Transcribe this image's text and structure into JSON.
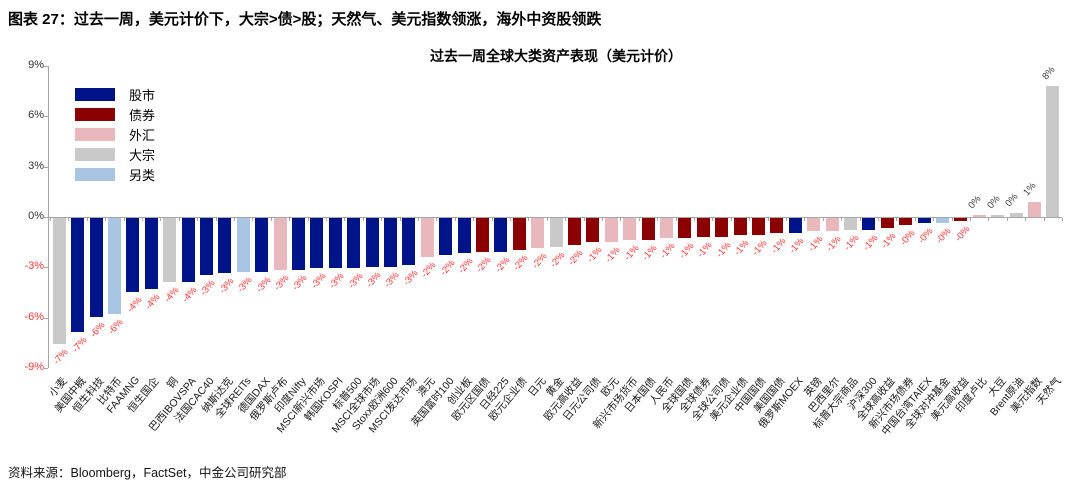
{
  "figure_title": "图表 27：过去一周，美元计价下，大宗>债>股；天然气、美元指数领涨，海外中资股领跌",
  "source_note": "资料来源：Bloomberg，FactSet，中金公司研究部",
  "chart_data": {
    "type": "bar",
    "title": "过去一周全球大类资产表现（美元计价）",
    "ylabel": "",
    "xlabel": "",
    "ylim": [
      -9,
      9
    ],
    "grid": false,
    "legend_position": "top-left",
    "y_ticks": [
      {
        "label": "9%",
        "value": 9
      },
      {
        "label": "6%",
        "value": 6
      },
      {
        "label": "3%",
        "value": 3
      },
      {
        "label": "0%",
        "value": 0
      },
      {
        "label": "-3%",
        "value": -3
      },
      {
        "label": "-6%",
        "value": -6
      },
      {
        "label": "-9%",
        "value": -9
      }
    ],
    "legend": [
      {
        "label": "股市",
        "color": "#001489"
      },
      {
        "label": "债券",
        "color": "#8B0000"
      },
      {
        "label": "外汇",
        "color": "#E9B8BD"
      },
      {
        "label": "大宗",
        "color": "#C9C9C9"
      },
      {
        "label": "另类",
        "color": "#A9C5E4"
      }
    ],
    "category_colors": {
      "股市": "#001489",
      "债券": "#8B0000",
      "外汇": "#E9B8BD",
      "大宗": "#C9C9C9",
      "另类": "#A9C5E4"
    },
    "label_colors": {
      "negative": "#FF3535",
      "positive": "#3f3f3f"
    },
    "bars": [
      {
        "label": "小麦",
        "category": "大宗",
        "value": -7.5,
        "value_label": "-7%"
      },
      {
        "label": "美国中概",
        "category": "股市",
        "value": -6.8,
        "value_label": "-7%"
      },
      {
        "label": "恒生科技",
        "category": "股市",
        "value": -5.9,
        "value_label": "-6%"
      },
      {
        "label": "比特币",
        "category": "另类",
        "value": -5.7,
        "value_label": "-6%"
      },
      {
        "label": "FAAMNG",
        "category": "股市",
        "value": -4.4,
        "value_label": "-4%"
      },
      {
        "label": "恒生国企",
        "category": "股市",
        "value": -4.2,
        "value_label": "-4%"
      },
      {
        "label": "铜",
        "category": "大宗",
        "value": -3.8,
        "value_label": "-4%"
      },
      {
        "label": "巴西IBOVSPA",
        "category": "股市",
        "value": -3.8,
        "value_label": "-4%"
      },
      {
        "label": "法国CAC40",
        "category": "股市",
        "value": -3.4,
        "value_label": "-3%"
      },
      {
        "label": "纳斯达克",
        "category": "股市",
        "value": -3.3,
        "value_label": "-3%"
      },
      {
        "label": "全球REITs",
        "category": "另类",
        "value": -3.2,
        "value_label": "-3%"
      },
      {
        "label": "德国DAX",
        "category": "股市",
        "value": -3.2,
        "value_label": "-3%"
      },
      {
        "label": "俄罗斯卢布",
        "category": "外汇",
        "value": -3.1,
        "value_label": "-3%"
      },
      {
        "label": "印度Nifty",
        "category": "股市",
        "value": -3.1,
        "value_label": "-3%"
      },
      {
        "label": "MSCI新兴市场",
        "category": "股市",
        "value": -3.0,
        "value_label": "-3%"
      },
      {
        "label": "韩国KOSPI",
        "category": "股市",
        "value": -3.0,
        "value_label": "-3%"
      },
      {
        "label": "标普500",
        "category": "股市",
        "value": -3.0,
        "value_label": "-3%"
      },
      {
        "label": "MSCI全球市场",
        "category": "股市",
        "value": -2.9,
        "value_label": "-3%"
      },
      {
        "label": "Stoxx欧洲600",
        "category": "股市",
        "value": -2.9,
        "value_label": "-3%"
      },
      {
        "label": "MSCI发达市场",
        "category": "股市",
        "value": -2.8,
        "value_label": "-3%"
      },
      {
        "label": "澳元",
        "category": "外汇",
        "value": -2.3,
        "value_label": "-2%"
      },
      {
        "label": "英国富时100",
        "category": "股市",
        "value": -2.2,
        "value_label": "-2%"
      },
      {
        "label": "创业板",
        "category": "股市",
        "value": -2.1,
        "value_label": "-2%"
      },
      {
        "label": "欧元区国债",
        "category": "债券",
        "value": -2.0,
        "value_label": "-2%"
      },
      {
        "label": "日经225",
        "category": "股市",
        "value": -2.0,
        "value_label": "-2%"
      },
      {
        "label": "欧元企业债",
        "category": "债券",
        "value": -1.9,
        "value_label": "-2%"
      },
      {
        "label": "日元",
        "category": "外汇",
        "value": -1.8,
        "value_label": "-2%"
      },
      {
        "label": "黄金",
        "category": "大宗",
        "value": -1.7,
        "value_label": "-2%"
      },
      {
        "label": "欧元高收益",
        "category": "债券",
        "value": -1.6,
        "value_label": "-2%"
      },
      {
        "label": "日元公司债",
        "category": "债券",
        "value": -1.4,
        "value_label": "-1%"
      },
      {
        "label": "欧元",
        "category": "外汇",
        "value": -1.4,
        "value_label": "-1%"
      },
      {
        "label": "新兴市场货币",
        "category": "外汇",
        "value": -1.3,
        "value_label": "-1%"
      },
      {
        "label": "日本国债",
        "category": "债券",
        "value": -1.3,
        "value_label": "-1%"
      },
      {
        "label": "人民币",
        "category": "外汇",
        "value": -1.2,
        "value_label": "-1%"
      },
      {
        "label": "全球国债",
        "category": "债券",
        "value": -1.2,
        "value_label": "-1%"
      },
      {
        "label": "全球债券",
        "category": "债券",
        "value": -1.1,
        "value_label": "-1%"
      },
      {
        "label": "全球公司债",
        "category": "债券",
        "value": -1.1,
        "value_label": "-1%"
      },
      {
        "label": "美元企业债",
        "category": "债券",
        "value": -1.0,
        "value_label": "-1%"
      },
      {
        "label": "中国国债",
        "category": "债券",
        "value": -1.0,
        "value_label": "-1%"
      },
      {
        "label": "美国国债",
        "category": "债券",
        "value": -0.9,
        "value_label": "-1%"
      },
      {
        "label": "俄罗斯MOEX",
        "category": "股市",
        "value": -0.9,
        "value_label": "-1%"
      },
      {
        "label": "英镑",
        "category": "外汇",
        "value": -0.8,
        "value_label": "-1%"
      },
      {
        "label": "巴西里尔",
        "category": "外汇",
        "value": -0.8,
        "value_label": "-1%"
      },
      {
        "label": "标普大宗商品",
        "category": "大宗",
        "value": -0.7,
        "value_label": "-1%"
      },
      {
        "label": "沪深300",
        "category": "股市",
        "value": -0.7,
        "value_label": "-1%"
      },
      {
        "label": "全球高收益",
        "category": "债券",
        "value": -0.6,
        "value_label": "-1%"
      },
      {
        "label": "新兴市场债券",
        "category": "债券",
        "value": -0.4,
        "value_label": "-0%"
      },
      {
        "label": "中国台湾TAIEX",
        "category": "股市",
        "value": -0.3,
        "value_label": "-0%"
      },
      {
        "label": "全球对冲基金",
        "category": "另类",
        "value": -0.3,
        "value_label": "-0%"
      },
      {
        "label": "美元高收益",
        "category": "债券",
        "value": -0.2,
        "value_label": "-0%"
      },
      {
        "label": "印度卢比",
        "category": "外汇",
        "value": 0.1,
        "value_label": "0%"
      },
      {
        "label": "大豆",
        "category": "大宗",
        "value": 0.1,
        "value_label": "0%"
      },
      {
        "label": "Brent原油",
        "category": "大宗",
        "value": 0.25,
        "value_label": "0%"
      },
      {
        "label": "美元指数",
        "category": "外汇",
        "value": 0.9,
        "value_label": "1%"
      },
      {
        "label": "天然气",
        "category": "大宗",
        "value": 7.8,
        "value_label": "8%"
      }
    ]
  }
}
